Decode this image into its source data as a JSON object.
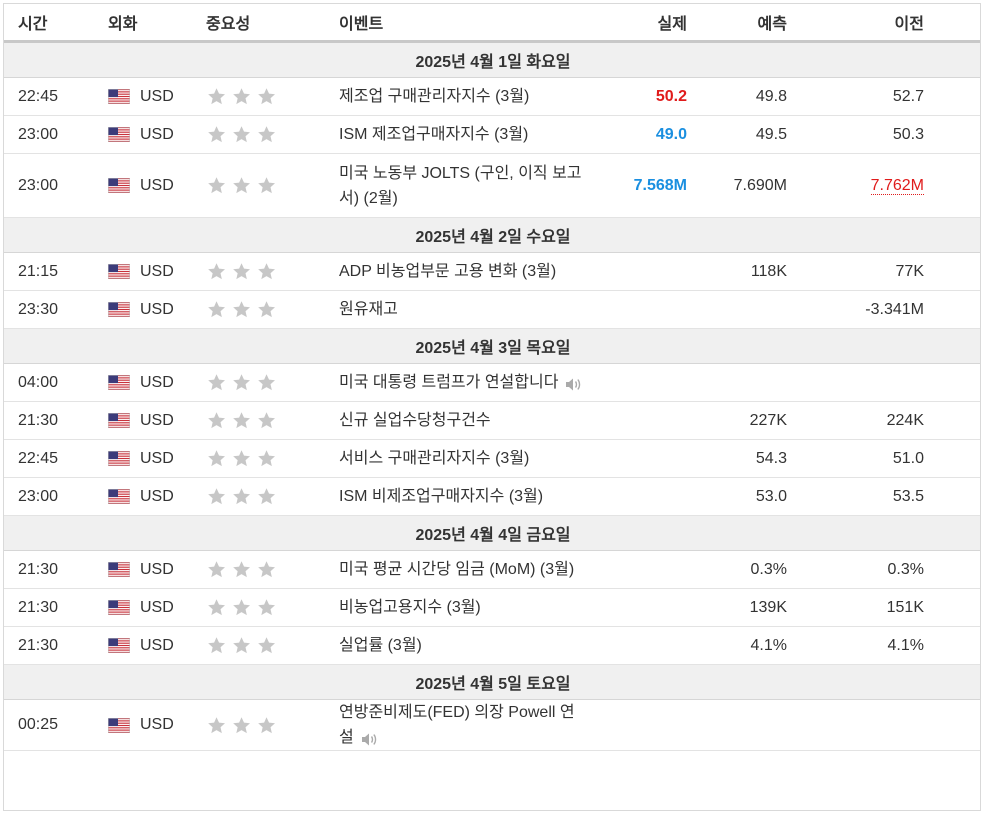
{
  "headers": {
    "time": "시간",
    "currency": "외화",
    "importance": "중요성",
    "event": "이벤트",
    "actual": "실제",
    "forecast": "예측",
    "previous": "이전"
  },
  "colors": {
    "beat": "#e01b1b",
    "miss_or_better": "#1a8fe0",
    "revised_previous": "#e01b1b",
    "star": "#c7c7c7",
    "day_bg": "#f0f0f0"
  },
  "days": [
    {
      "label": "2025년 4월 1일 화요일",
      "events": [
        {
          "time": "22:45",
          "currency": "USD",
          "event": "제조업 구매관리자지수 (3월)",
          "actual": "50.2",
          "actual_style": "red",
          "forecast": "49.8",
          "previous": "52.7",
          "previous_style": ""
        },
        {
          "time": "23:00",
          "currency": "USD",
          "event": "ISM 제조업구매자지수 (3월)",
          "actual": "49.0",
          "actual_style": "blue",
          "forecast": "49.5",
          "previous": "50.3",
          "previous_style": ""
        },
        {
          "time": "23:00",
          "currency": "USD",
          "event": "미국 노동부 JOLTS (구인, 이직 보고서) (2월)",
          "actual": "7.568M",
          "actual_style": "blue",
          "forecast": "7.690M",
          "previous": "7.762M",
          "previous_style": "revised"
        }
      ]
    },
    {
      "label": "2025년 4월 2일 수요일",
      "events": [
        {
          "time": "21:15",
          "currency": "USD",
          "event": "ADP 비농업부문 고용 변화 (3월)",
          "actual": "",
          "actual_style": "",
          "forecast": "118K",
          "previous": "77K",
          "previous_style": ""
        },
        {
          "time": "23:30",
          "currency": "USD",
          "event": "원유재고",
          "actual": "",
          "actual_style": "",
          "forecast": "",
          "previous": "-3.341M",
          "previous_style": ""
        }
      ]
    },
    {
      "label": "2025년 4월 3일 목요일",
      "events": [
        {
          "time": "04:00",
          "currency": "USD",
          "event": "미국 대통령 트럼프가 연설합니다",
          "speech": true,
          "actual": "",
          "actual_style": "",
          "forecast": "",
          "previous": "",
          "previous_style": ""
        },
        {
          "time": "21:30",
          "currency": "USD",
          "event": "신규 실업수당청구건수",
          "actual": "",
          "actual_style": "",
          "forecast": "227K",
          "previous": "224K",
          "previous_style": ""
        },
        {
          "time": "22:45",
          "currency": "USD",
          "event": "서비스 구매관리자지수 (3월)",
          "actual": "",
          "actual_style": "",
          "forecast": "54.3",
          "previous": "51.0",
          "previous_style": ""
        },
        {
          "time": "23:00",
          "currency": "USD",
          "event": "ISM 비제조업구매자지수 (3월)",
          "actual": "",
          "actual_style": "",
          "forecast": "53.0",
          "previous": "53.5",
          "previous_style": ""
        }
      ]
    },
    {
      "label": "2025년 4월 4일 금요일",
      "events": [
        {
          "time": "21:30",
          "currency": "USD",
          "event": "미국 평균 시간당 임금 (MoM) (3월)",
          "actual": "",
          "actual_style": "",
          "forecast": "0.3%",
          "previous": "0.3%",
          "previous_style": ""
        },
        {
          "time": "21:30",
          "currency": "USD",
          "event": "비농업고용지수 (3월)",
          "actual": "",
          "actual_style": "",
          "forecast": "139K",
          "previous": "151K",
          "previous_style": ""
        },
        {
          "time": "21:30",
          "currency": "USD",
          "event": "실업률 (3월)",
          "actual": "",
          "actual_style": "",
          "forecast": "4.1%",
          "previous": "4.1%",
          "previous_style": ""
        }
      ]
    },
    {
      "label": "2025년 4월 5일 토요일",
      "events": [
        {
          "time": "00:25",
          "currency": "USD",
          "event": "연방준비제도(FED) 의장 Powell 연설",
          "speech": true,
          "actual": "",
          "actual_style": "",
          "forecast": "",
          "previous": "",
          "previous_style": ""
        }
      ]
    }
  ]
}
